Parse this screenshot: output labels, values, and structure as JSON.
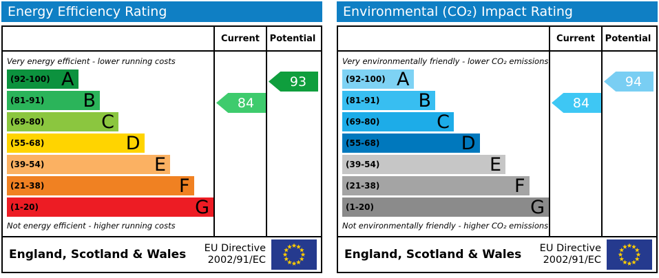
{
  "panels": [
    {
      "title": "Energy Efficiency Rating",
      "header": {
        "current": "Current",
        "potential": "Potential"
      },
      "note_top": "Very energy efficient - lower running costs",
      "note_bottom": "Not energy efficient - higher running costs",
      "bands": [
        {
          "letter": "A",
          "range": "(92-100)",
          "color": "#0c923e",
          "width_pct": 34.5
        },
        {
          "letter": "B",
          "range": "(81-91)",
          "color": "#2bb45a",
          "width_pct": 45
        },
        {
          "letter": "C",
          "range": "(69-80)",
          "color": "#8bc63f",
          "width_pct": 54
        },
        {
          "letter": "D",
          "range": "(55-68)",
          "color": "#ffd400",
          "width_pct": 66.5
        },
        {
          "letter": "E",
          "range": "(39-54)",
          "color": "#fbb162",
          "width_pct": 79
        },
        {
          "letter": "F",
          "range": "(21-38)",
          "color": "#f08122",
          "width_pct": 90.5
        },
        {
          "letter": "G",
          "range": "(1-20)",
          "color": "#ed1c24",
          "width_pct": 100
        }
      ],
      "current": {
        "value": "84",
        "band": "B",
        "band_index": 1,
        "color": "#3ecb6d"
      },
      "potential": {
        "value": "93",
        "band": "A",
        "band_index": 0,
        "color": "#0f9e3d"
      },
      "footer": {
        "region": "England, Scotland & Wales",
        "directive_line1": "EU Directive",
        "directive_line2": "2002/91/EC"
      },
      "flag_colors": {
        "background": "#253a8e",
        "stars": "#ffcc00"
      }
    },
    {
      "title": "Environmental (CO₂) Impact Rating",
      "header": {
        "current": "Current",
        "potential": "Potential"
      },
      "note_top": "Very environmentally friendly - lower CO₂ emissions",
      "note_bottom": "Not environmentally friendly - higher CO₂ emissions",
      "bands": [
        {
          "letter": "A",
          "range": "(92-100)",
          "color": "#7ed2f4",
          "width_pct": 34.5
        },
        {
          "letter": "B",
          "range": "(81-91)",
          "color": "#38bef1",
          "width_pct": 45
        },
        {
          "letter": "C",
          "range": "(69-80)",
          "color": "#1dace8",
          "width_pct": 54
        },
        {
          "letter": "D",
          "range": "(55-68)",
          "color": "#0078bd",
          "width_pct": 66.5
        },
        {
          "letter": "E",
          "range": "(39-54)",
          "color": "#c6c6c6",
          "width_pct": 79
        },
        {
          "letter": "F",
          "range": "(21-38)",
          "color": "#a4a4a4",
          "width_pct": 90.5
        },
        {
          "letter": "G",
          "range": "(1-20)",
          "color": "#8b8b8b",
          "width_pct": 100
        }
      ],
      "current": {
        "value": "84",
        "band": "B",
        "band_index": 1,
        "color": "#3ec7f4"
      },
      "potential": {
        "value": "94",
        "band": "A",
        "band_index": 0,
        "color": "#79cef3"
      },
      "footer": {
        "region": "England, Scotland & Wales",
        "directive_line1": "EU Directive",
        "directive_line2": "2002/91/EC"
      },
      "flag_colors": {
        "background": "#253a8e",
        "stars": "#ffcc00"
      }
    }
  ],
  "chart_data": [
    {
      "type": "bar",
      "title": "Energy Efficiency Rating",
      "categories": [
        "A (92-100)",
        "B (81-91)",
        "C (69-80)",
        "D (55-68)",
        "E (39-54)",
        "F (21-38)",
        "G (1-20)"
      ],
      "band_colors": [
        "#0c923e",
        "#2bb45a",
        "#8bc63f",
        "#ffd400",
        "#fbb162",
        "#f08122",
        "#ed1c24"
      ],
      "band_relative_lengths_pct": [
        34.5,
        45,
        54,
        66.5,
        79,
        90.5,
        100
      ],
      "series": [
        {
          "name": "Current",
          "values": [
            84
          ],
          "band": "B",
          "color": "#3ecb6d"
        },
        {
          "name": "Potential",
          "values": [
            93
          ],
          "band": "A",
          "color": "#0f9e3d"
        }
      ],
      "scale_range": [
        1,
        100
      ],
      "top_annotation": "Very energy efficient - lower running costs",
      "bottom_annotation": "Not energy efficient - higher running costs",
      "footer": "England, Scotland & Wales — EU Directive 2002/91/EC",
      "legend_position": "top-right-columns",
      "grid": false
    },
    {
      "type": "bar",
      "title": "Environmental (CO₂) Impact Rating",
      "categories": [
        "A (92-100)",
        "B (81-91)",
        "C (69-80)",
        "D (55-68)",
        "E (39-54)",
        "F (21-38)",
        "G (1-20)"
      ],
      "band_colors": [
        "#7ed2f4",
        "#38bef1",
        "#1dace8",
        "#0078bd",
        "#c6c6c6",
        "#a4a4a4",
        "#8b8b8b"
      ],
      "band_relative_lengths_pct": [
        34.5,
        45,
        54,
        66.5,
        79,
        90.5,
        100
      ],
      "series": [
        {
          "name": "Current",
          "values": [
            84
          ],
          "band": "B",
          "color": "#3ec7f4"
        },
        {
          "name": "Potential",
          "values": [
            94
          ],
          "band": "A",
          "color": "#79cef3"
        }
      ],
      "scale_range": [
        1,
        100
      ],
      "top_annotation": "Very environmentally friendly - lower CO₂ emissions",
      "bottom_annotation": "Not environmentally friendly - higher CO₂ emissions",
      "footer": "England, Scotland & Wales — EU Directive 2002/91/EC",
      "legend_position": "top-right-columns",
      "grid": false
    }
  ]
}
